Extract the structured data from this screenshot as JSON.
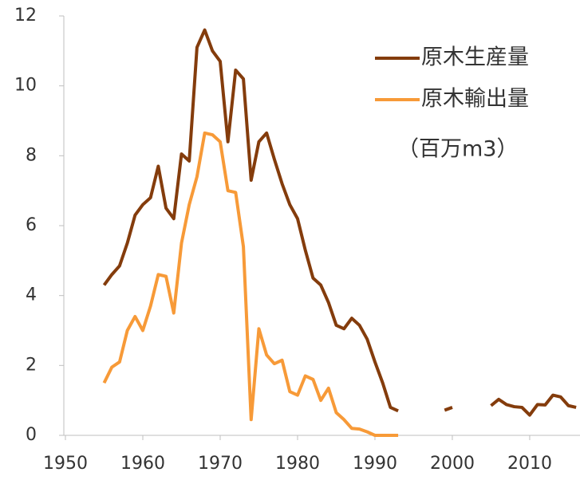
{
  "chart_data": {
    "type": "line",
    "unit_label": "（百万m3）",
    "x": [
      1955,
      1956,
      1957,
      1958,
      1959,
      1960,
      1961,
      1962,
      1963,
      1964,
      1965,
      1966,
      1967,
      1968,
      1969,
      1970,
      1971,
      1972,
      1973,
      1974,
      1975,
      1976,
      1977,
      1978,
      1979,
      1980,
      1981,
      1982,
      1983,
      1984,
      1985,
      1986,
      1987,
      1988,
      1989,
      1990,
      1991,
      1992,
      1993,
      1994,
      1995,
      1996,
      1997,
      1998,
      1999,
      2000,
      2001,
      2002,
      2003,
      2004,
      2005,
      2006,
      2007,
      2008,
      2009,
      2010,
      2011,
      2012,
      2013,
      2014,
      2015,
      2016
    ],
    "series": [
      {
        "name": "原木生産量",
        "color": "#843c0c",
        "values": [
          4.3,
          4.6,
          4.85,
          5.5,
          6.3,
          6.6,
          6.8,
          7.7,
          6.5,
          6.2,
          8.05,
          7.85,
          11.1,
          11.6,
          11.0,
          10.7,
          8.4,
          10.45,
          10.2,
          7.3,
          8.4,
          8.65,
          7.9,
          7.2,
          6.6,
          6.2,
          5.3,
          4.5,
          4.3,
          3.8,
          3.15,
          3.05,
          3.35,
          3.15,
          2.75,
          2.1,
          1.5,
          0.8,
          0.7,
          null,
          null,
          null,
          null,
          null,
          0.72,
          0.8,
          null,
          null,
          null,
          null,
          0.85,
          1.03,
          0.88,
          0.82,
          0.8,
          0.58,
          0.88,
          0.87,
          1.15,
          1.1,
          0.85,
          0.8
        ]
      },
      {
        "name": "原木輸出量",
        "color": "#f79a38",
        "values": [
          1.5,
          1.95,
          2.1,
          3.0,
          3.4,
          3.0,
          3.7,
          4.6,
          4.55,
          3.5,
          5.5,
          6.6,
          7.4,
          8.65,
          8.6,
          8.4,
          7.0,
          6.95,
          5.4,
          0.45,
          3.05,
          2.3,
          2.05,
          2.15,
          1.25,
          1.15,
          1.7,
          1.6,
          1.0,
          1.35,
          0.65,
          0.45,
          0.2,
          0.18,
          0.1,
          0.0,
          0,
          0,
          0,
          null,
          null,
          null,
          null,
          null,
          null,
          null,
          null,
          null,
          null,
          null,
          null,
          null,
          null,
          null,
          null,
          null,
          null,
          null,
          null,
          null,
          null,
          null
        ]
      }
    ],
    "xlim": [
      1950,
      2016.5
    ],
    "xticks": [
      1950,
      1960,
      1970,
      1980,
      1990,
      2000,
      2010
    ],
    "ylim": [
      0,
      12
    ],
    "yticks": [
      0,
      2,
      4,
      6,
      8,
      10,
      12
    ],
    "grid": false,
    "legend": "upper right"
  }
}
